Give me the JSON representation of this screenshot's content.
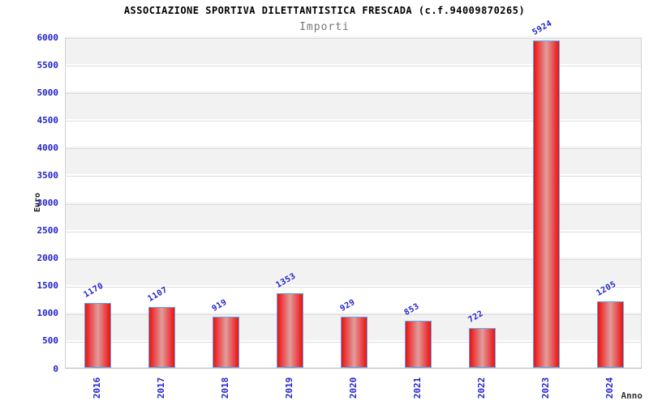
{
  "chart_data": {
    "type": "bar",
    "title": "ASSOCIAZIONE SPORTIVA DILETTANTISTICA FRESCADA (c.f.94009870265)",
    "subtitle": "Importi",
    "xlabel": "Anno",
    "ylabel": "Euro",
    "categories": [
      "2016",
      "2017",
      "2018",
      "2019",
      "2020",
      "2021",
      "2022",
      "2023",
      "2024"
    ],
    "values": [
      1170,
      1107,
      919,
      1353,
      929,
      853,
      722,
      5924,
      1205
    ],
    "ylim": [
      0,
      6000
    ],
    "ytick_step": 500,
    "grid": true,
    "legend": "none",
    "band_colors": [
      "#ffffff",
      "#f2f2f2"
    ],
    "colors": {
      "bar_fill_edge": "#ee1010",
      "bar_fill_mid": "#e19c9c",
      "bar_border": "#5aa7e8",
      "tick_text": "#2222cc",
      "value_text": "#2222cc",
      "gridline": "#dcdcdc",
      "title_text": "#000000",
      "subtitle_text": "#767676"
    }
  }
}
